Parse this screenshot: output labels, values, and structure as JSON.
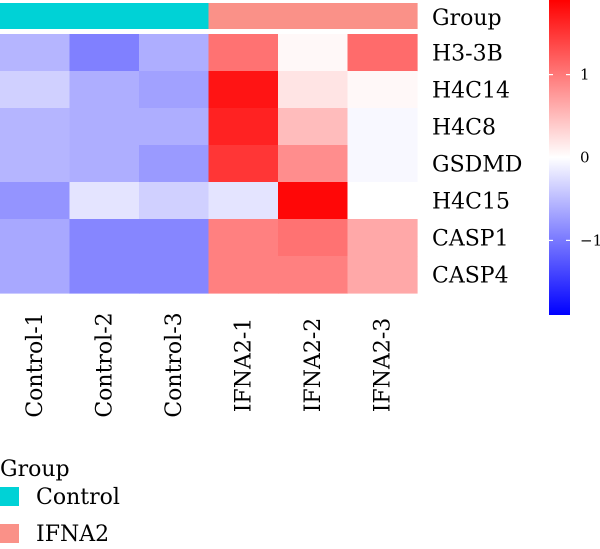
{
  "chart_data": {
    "type": "heatmap",
    "columns": [
      "Control-1",
      "Control-2",
      "Control-3",
      "IFNA2-1",
      "IFNA2-2",
      "IFNA2-3"
    ],
    "rows": [
      "H3-3B",
      "H4C14",
      "H4C8",
      "GSDMD",
      "H4C15",
      "CASP1",
      "CASP4"
    ],
    "values": [
      [
        -0.55,
        -0.95,
        -0.6,
        1.05,
        0.05,
        1.1
      ],
      [
        -0.35,
        -0.6,
        -0.7,
        1.75,
        0.2,
        0.05
      ],
      [
        -0.55,
        -0.6,
        -0.6,
        1.65,
        0.5,
        -0.05
      ],
      [
        -0.55,
        -0.6,
        -0.75,
        1.5,
        0.85,
        -0.05
      ],
      [
        -0.8,
        -0.2,
        -0.35,
        -0.2,
        1.85,
        0.0
      ],
      [
        -0.65,
        -0.9,
        -0.9,
        0.95,
        1.05,
        0.65
      ],
      [
        -0.65,
        -0.9,
        -0.9,
        0.95,
        0.95,
        0.65
      ]
    ],
    "annotation": {
      "name": "Group",
      "values": [
        "Control",
        "Control",
        "Control",
        "IFNA2",
        "IFNA2",
        "IFNA2"
      ]
    },
    "color_scale": {
      "min": -1.9,
      "max": 1.9,
      "low_color": "#0000ff",
      "mid_color": "#ffffff",
      "high_color": "#ff0000",
      "ticks": [
        1,
        0,
        -1
      ],
      "tick_labels": [
        "1",
        "0",
        "−1"
      ]
    },
    "legend": {
      "title": "Group",
      "items": [
        {
          "label": "Control",
          "color": "#00d2d6"
        },
        {
          "label": "IFNA2",
          "color": "#fa9188"
        }
      ]
    }
  }
}
